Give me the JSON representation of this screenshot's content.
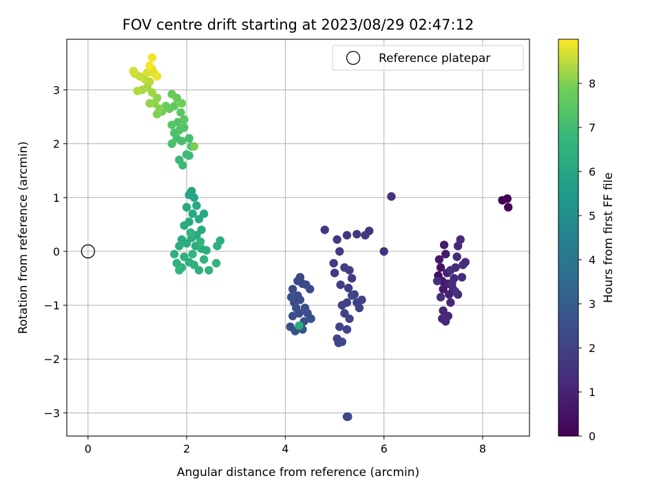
{
  "chart_data": {
    "type": "scatter",
    "title": "FOV centre drift starting at 2023/08/29 02:47:12",
    "xlabel": "Angular distance from reference (arcmin)",
    "ylabel": "Rotation from reference (arcmin)",
    "xlim": [
      -0.43,
      8.95
    ],
    "ylim": [
      -3.43,
      3.94
    ],
    "xticks": [
      0,
      2,
      4,
      6,
      8
    ],
    "yticks": [
      -3,
      -2,
      -1,
      0,
      1,
      2,
      3
    ],
    "grid": true,
    "legend": {
      "position": "upper right",
      "entries": [
        "Reference platepar"
      ]
    },
    "reference_point": {
      "x": 0,
      "y": 0,
      "label": "Reference platepar",
      "marker": "open-circle"
    },
    "colorbar": {
      "label": "Hours from first FF file",
      "colormap": "viridis",
      "range": [
        0,
        9.0
      ],
      "ticks": [
        0,
        1,
        2,
        3,
        4,
        5,
        6,
        7,
        8
      ]
    },
    "points": [
      {
        "x": 8.4,
        "y": 0.95,
        "h": 0.02
      },
      {
        "x": 8.5,
        "y": 0.98,
        "h": 0.05
      },
      {
        "x": 8.52,
        "y": 0.82,
        "h": 0.08
      },
      {
        "x": 7.1,
        "y": -0.45,
        "h": 0.4
      },
      {
        "x": 7.15,
        "y": -0.3,
        "h": 0.55
      },
      {
        "x": 7.18,
        "y": -0.55,
        "h": 0.6
      },
      {
        "x": 7.2,
        "y": -0.7,
        "h": 0.65
      },
      {
        "x": 7.12,
        "y": -0.15,
        "h": 0.7
      },
      {
        "x": 7.22,
        "y": 0.12,
        "h": 0.75
      },
      {
        "x": 7.25,
        "y": -0.05,
        "h": 0.8
      },
      {
        "x": 7.28,
        "y": -0.4,
        "h": 0.85
      },
      {
        "x": 7.3,
        "y": -0.6,
        "h": 0.9
      },
      {
        "x": 7.32,
        "y": -0.8,
        "h": 0.95
      },
      {
        "x": 7.35,
        "y": -0.95,
        "h": 1.0
      },
      {
        "x": 7.2,
        "y": -1.1,
        "h": 1.05
      },
      {
        "x": 7.18,
        "y": -1.25,
        "h": 1.1
      },
      {
        "x": 7.25,
        "y": -1.3,
        "h": 1.12
      },
      {
        "x": 7.3,
        "y": -1.2,
        "h": 1.14
      },
      {
        "x": 7.4,
        "y": -0.7,
        "h": 1.16
      },
      {
        "x": 7.42,
        "y": -0.5,
        "h": 1.18
      },
      {
        "x": 7.45,
        "y": -0.3,
        "h": 1.2
      },
      {
        "x": 7.48,
        "y": -0.1,
        "h": 1.22
      },
      {
        "x": 7.5,
        "y": 0.1,
        "h": 1.24
      },
      {
        "x": 7.55,
        "y": 0.22,
        "h": 1.26
      },
      {
        "x": 7.6,
        "y": -0.25,
        "h": 1.28
      },
      {
        "x": 7.58,
        "y": -0.48,
        "h": 1.3
      },
      {
        "x": 7.65,
        "y": -0.2,
        "h": 1.32
      },
      {
        "x": 7.5,
        "y": -0.8,
        "h": 1.34
      },
      {
        "x": 7.38,
        "y": -0.6,
        "h": 1.36
      },
      {
        "x": 7.08,
        "y": -0.55,
        "h": 1.38
      },
      {
        "x": 7.15,
        "y": -0.85,
        "h": 1.4
      },
      {
        "x": 7.35,
        "y": -0.35,
        "h": 1.42
      },
      {
        "x": 7.45,
        "y": -0.75,
        "h": 1.44
      },
      {
        "x": 6.15,
        "y": 1.02,
        "h": 1.5
      },
      {
        "x": 6.0,
        "y": 0.0,
        "h": 1.55
      },
      {
        "x": 5.7,
        "y": 0.38,
        "h": 1.6
      },
      {
        "x": 5.62,
        "y": 0.3,
        "h": 1.62
      },
      {
        "x": 5.45,
        "y": 0.32,
        "h": 1.65
      },
      {
        "x": 5.25,
        "y": 0.3,
        "h": 1.68
      },
      {
        "x": 5.05,
        "y": 0.22,
        "h": 1.7
      },
      {
        "x": 4.8,
        "y": 0.4,
        "h": 1.72
      },
      {
        "x": 5.1,
        "y": 0.0,
        "h": 1.74
      },
      {
        "x": 4.98,
        "y": -0.22,
        "h": 1.76
      },
      {
        "x": 5.0,
        "y": -0.4,
        "h": 1.78
      },
      {
        "x": 5.2,
        "y": -0.3,
        "h": 1.8
      },
      {
        "x": 5.3,
        "y": -0.35,
        "h": 1.82
      },
      {
        "x": 5.35,
        "y": -0.5,
        "h": 1.84
      },
      {
        "x": 5.12,
        "y": -0.62,
        "h": 1.86
      },
      {
        "x": 5.28,
        "y": -0.68,
        "h": 1.88
      },
      {
        "x": 5.4,
        "y": -0.8,
        "h": 1.9
      },
      {
        "x": 5.45,
        "y": -0.95,
        "h": 1.92
      },
      {
        "x": 5.55,
        "y": -0.9,
        "h": 1.94
      },
      {
        "x": 5.5,
        "y": -1.05,
        "h": 1.96
      },
      {
        "x": 5.25,
        "y": -0.95,
        "h": 1.98
      },
      {
        "x": 5.15,
        "y": -1.0,
        "h": 2.0
      },
      {
        "x": 5.2,
        "y": -1.15,
        "h": 2.02
      },
      {
        "x": 5.3,
        "y": -1.25,
        "h": 2.04
      },
      {
        "x": 5.1,
        "y": -1.4,
        "h": 2.06
      },
      {
        "x": 5.25,
        "y": -1.45,
        "h": 2.08
      },
      {
        "x": 5.05,
        "y": -1.62,
        "h": 2.1
      },
      {
        "x": 5.08,
        "y": -1.7,
        "h": 2.12
      },
      {
        "x": 5.15,
        "y": -1.68,
        "h": 2.14
      },
      {
        "x": 5.35,
        "y": -0.82,
        "h": 2.16
      },
      {
        "x": 5.25,
        "y": -3.07,
        "h": 2.18
      },
      {
        "x": 5.27,
        "y": -3.07,
        "h": 2.19
      },
      {
        "x": 4.3,
        "y": -0.48,
        "h": 2.2
      },
      {
        "x": 4.35,
        "y": -0.6,
        "h": 2.22
      },
      {
        "x": 4.25,
        "y": -0.55,
        "h": 2.24
      },
      {
        "x": 4.15,
        "y": -0.7,
        "h": 2.26
      },
      {
        "x": 4.25,
        "y": -0.82,
        "h": 2.28
      },
      {
        "x": 4.3,
        "y": -0.9,
        "h": 2.3
      },
      {
        "x": 4.42,
        "y": -0.62,
        "h": 2.32
      },
      {
        "x": 4.5,
        "y": -0.7,
        "h": 2.34
      },
      {
        "x": 4.18,
        "y": -0.95,
        "h": 2.36
      },
      {
        "x": 4.22,
        "y": -1.05,
        "h": 2.38
      },
      {
        "x": 4.15,
        "y": -1.2,
        "h": 2.4
      },
      {
        "x": 4.28,
        "y": -1.15,
        "h": 2.42
      },
      {
        "x": 4.4,
        "y": -1.05,
        "h": 2.44
      },
      {
        "x": 4.45,
        "y": -1.15,
        "h": 2.46
      },
      {
        "x": 4.52,
        "y": -1.25,
        "h": 2.48
      },
      {
        "x": 4.38,
        "y": -1.3,
        "h": 2.5
      },
      {
        "x": 4.1,
        "y": -1.4,
        "h": 2.52
      },
      {
        "x": 4.2,
        "y": -1.48,
        "h": 2.54
      },
      {
        "x": 4.35,
        "y": -1.45,
        "h": 2.56
      },
      {
        "x": 4.12,
        "y": -0.85,
        "h": 2.58
      },
      {
        "x": 4.28,
        "y": -1.38,
        "h": 6.3
      },
      {
        "x": 2.1,
        "y": 1.12,
        "h": 6.0
      },
      {
        "x": 2.15,
        "y": 1.0,
        "h": 6.02
      },
      {
        "x": 2.05,
        "y": 1.05,
        "h": 6.04
      },
      {
        "x": 2.2,
        "y": 0.85,
        "h": 6.06
      },
      {
        "x": 2.0,
        "y": 0.82,
        "h": 6.08
      },
      {
        "x": 2.12,
        "y": 0.7,
        "h": 6.1
      },
      {
        "x": 2.25,
        "y": 0.6,
        "h": 6.12
      },
      {
        "x": 2.35,
        "y": 0.7,
        "h": 6.14
      },
      {
        "x": 2.05,
        "y": 0.55,
        "h": 6.16
      },
      {
        "x": 1.95,
        "y": 0.48,
        "h": 6.18
      },
      {
        "x": 2.3,
        "y": 0.4,
        "h": 6.2
      },
      {
        "x": 2.2,
        "y": 0.3,
        "h": 6.22
      },
      {
        "x": 2.1,
        "y": 0.25,
        "h": 6.24
      },
      {
        "x": 1.9,
        "y": 0.22,
        "h": 6.26
      },
      {
        "x": 2.0,
        "y": 0.15,
        "h": 6.28
      },
      {
        "x": 1.85,
        "y": 0.1,
        "h": 6.3
      },
      {
        "x": 2.18,
        "y": 0.1,
        "h": 6.32
      },
      {
        "x": 2.3,
        "y": 0.05,
        "h": 6.34
      },
      {
        "x": 2.4,
        "y": 0.02,
        "h": 6.36
      },
      {
        "x": 2.62,
        "y": 0.1,
        "h": 6.38
      },
      {
        "x": 2.68,
        "y": 0.2,
        "h": 6.4
      },
      {
        "x": 1.75,
        "y": -0.05,
        "h": 6.42
      },
      {
        "x": 1.95,
        "y": -0.1,
        "h": 6.44
      },
      {
        "x": 2.05,
        "y": -0.2,
        "h": 6.46
      },
      {
        "x": 1.8,
        "y": -0.22,
        "h": 6.48
      },
      {
        "x": 1.9,
        "y": -0.3,
        "h": 6.5
      },
      {
        "x": 2.15,
        "y": -0.25,
        "h": 6.52
      },
      {
        "x": 2.25,
        "y": -0.35,
        "h": 6.54
      },
      {
        "x": 2.45,
        "y": -0.35,
        "h": 6.56
      },
      {
        "x": 2.6,
        "y": -0.22,
        "h": 6.58
      },
      {
        "x": 1.85,
        "y": -0.35,
        "h": 6.6
      },
      {
        "x": 2.35,
        "y": -0.15,
        "h": 6.62
      },
      {
        "x": 2.12,
        "y": -0.05,
        "h": 6.64
      },
      {
        "x": 2.28,
        "y": 0.18,
        "h": 6.66
      },
      {
        "x": 2.08,
        "y": 0.35,
        "h": 6.68
      },
      {
        "x": 2.0,
        "y": 1.8,
        "h": 6.8
      },
      {
        "x": 1.85,
        "y": 1.7,
        "h": 6.85
      },
      {
        "x": 1.92,
        "y": 1.6,
        "h": 6.9
      },
      {
        "x": 2.05,
        "y": 1.78,
        "h": 6.95
      },
      {
        "x": 2.1,
        "y": 1.95,
        "h": 7.0
      },
      {
        "x": 2.05,
        "y": 2.1,
        "h": 7.05
      },
      {
        "x": 1.9,
        "y": 2.05,
        "h": 7.1
      },
      {
        "x": 1.8,
        "y": 2.1,
        "h": 7.15
      },
      {
        "x": 1.7,
        "y": 2.0,
        "h": 7.2
      },
      {
        "x": 1.75,
        "y": 2.2,
        "h": 7.25
      },
      {
        "x": 1.85,
        "y": 2.25,
        "h": 7.3
      },
      {
        "x": 1.95,
        "y": 2.3,
        "h": 7.35
      },
      {
        "x": 1.82,
        "y": 2.4,
        "h": 7.4
      },
      {
        "x": 1.7,
        "y": 2.35,
        "h": 7.45
      },
      {
        "x": 1.95,
        "y": 2.45,
        "h": 7.5
      },
      {
        "x": 1.88,
        "y": 2.58,
        "h": 7.55
      },
      {
        "x": 1.75,
        "y": 2.7,
        "h": 7.6
      },
      {
        "x": 1.65,
        "y": 2.65,
        "h": 7.65
      },
      {
        "x": 1.8,
        "y": 2.85,
        "h": 7.7
      },
      {
        "x": 1.7,
        "y": 2.92,
        "h": 7.75
      },
      {
        "x": 1.58,
        "y": 2.7,
        "h": 7.8
      },
      {
        "x": 1.5,
        "y": 2.6,
        "h": 7.85
      },
      {
        "x": 1.9,
        "y": 2.75,
        "h": 7.9
      },
      {
        "x": 2.15,
        "y": 1.95,
        "h": 7.95
      },
      {
        "x": 1.4,
        "y": 2.55,
        "h": 8.0
      },
      {
        "x": 1.45,
        "y": 2.65,
        "h": 8.05
      },
      {
        "x": 1.35,
        "y": 2.75,
        "h": 8.1
      },
      {
        "x": 1.4,
        "y": 2.85,
        "h": 8.15
      },
      {
        "x": 1.25,
        "y": 2.75,
        "h": 8.2
      },
      {
        "x": 1.3,
        "y": 2.95,
        "h": 8.25
      },
      {
        "x": 1.2,
        "y": 3.05,
        "h": 8.3
      },
      {
        "x": 1.1,
        "y": 3.0,
        "h": 8.35
      },
      {
        "x": 1.0,
        "y": 2.98,
        "h": 8.4
      },
      {
        "x": 1.25,
        "y": 3.15,
        "h": 8.45
      },
      {
        "x": 1.15,
        "y": 3.2,
        "h": 8.5
      },
      {
        "x": 1.05,
        "y": 3.25,
        "h": 8.55
      },
      {
        "x": 0.95,
        "y": 3.3,
        "h": 8.6
      },
      {
        "x": 0.92,
        "y": 3.35,
        "h": 8.65
      },
      {
        "x": 1.2,
        "y": 3.32,
        "h": 8.7
      },
      {
        "x": 1.3,
        "y": 3.38,
        "h": 8.75
      },
      {
        "x": 1.35,
        "y": 3.3,
        "h": 8.8
      },
      {
        "x": 1.4,
        "y": 3.25,
        "h": 8.85
      },
      {
        "x": 1.3,
        "y": 3.6,
        "h": 8.9
      },
      {
        "x": 1.25,
        "y": 3.45,
        "h": 8.95
      }
    ]
  }
}
